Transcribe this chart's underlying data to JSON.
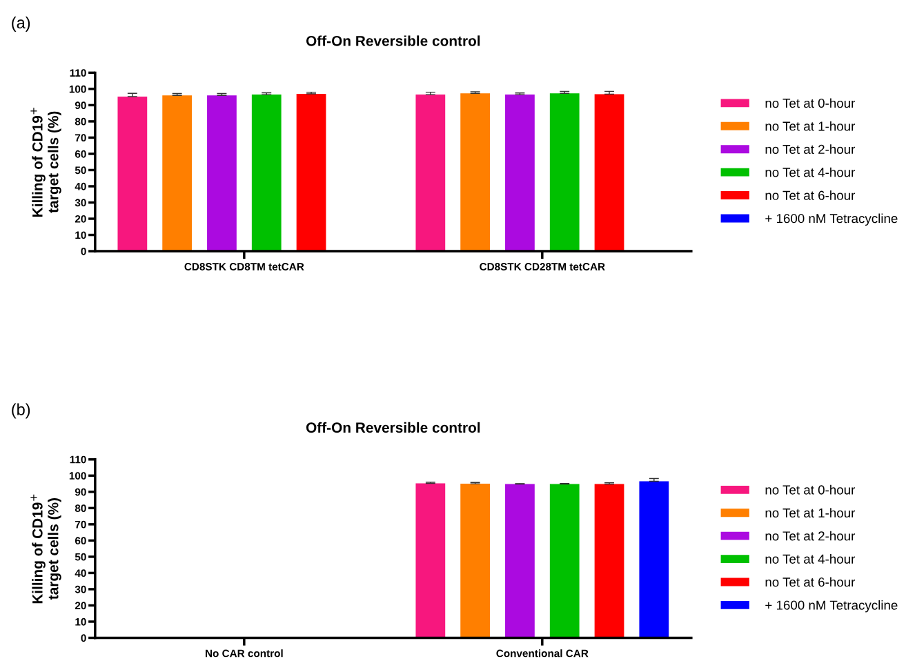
{
  "chart_data": [
    {
      "type": "bar",
      "title": "Off-On Reversible control",
      "ylabel": "Killing of CD19$^{+}$\ntarget cells (%)",
      "annotations": [
        "(a)"
      ],
      "categories": [
        "CD8STK CD8TM tetCAR",
        "CD8STK CD28TM tetCAR"
      ],
      "ylim": [
        0,
        110
      ],
      "yticks": [
        0,
        10,
        20,
        30,
        40,
        50,
        60,
        70,
        80,
        90,
        100,
        110
      ],
      "grid": false,
      "legend": "right",
      "series": [
        {
          "name": "no Tet at 0-hour",
          "color": "#f7177e",
          "values": [
            95.3,
            96.5
          ],
          "errors": [
            [
              95.3,
              97.3
            ],
            [
              96.5,
              98
            ]
          ]
        },
        {
          "name": "no Tet at 1-hour",
          "color": "#ff7f00",
          "values": [
            96,
            97.3
          ],
          "errors": [
            [
              96,
              97.2
            ],
            [
              97.3,
              98.3
            ]
          ]
        },
        {
          "name": "no Tet at 2-hour",
          "color": "#ab0ae0",
          "values": [
            96,
            96.5
          ],
          "errors": [
            [
              96,
              97.2
            ],
            [
              96.5,
              97.5
            ]
          ]
        },
        {
          "name": "no Tet at 4-hour",
          "color": "#00c000",
          "values": [
            96.5,
            97.3
          ],
          "errors": [
            [
              96.5,
              97.6
            ],
            [
              97.3,
              98.5
            ]
          ]
        },
        {
          "name": "no Tet at 6-hour",
          "color": "#ff0000",
          "values": [
            97,
            96.8
          ],
          "errors": [
            [
              97,
              98
            ],
            [
              96.8,
              98.5
            ]
          ]
        },
        {
          "name": "+ 1600 nM Tetracycline",
          "color": "#0000ff",
          "values": [
            null,
            null
          ],
          "errors": [
            null,
            null
          ]
        }
      ]
    },
    {
      "type": "bar",
      "title": "Off-On Reversible control",
      "ylabel": "Killing of CD19$^{+}$\ntarget cells (%)",
      "annotations": [
        "(b)"
      ],
      "categories": [
        "No CAR control",
        "Conventional CAR"
      ],
      "ylim": [
        0,
        110
      ],
      "yticks": [
        0,
        10,
        20,
        30,
        40,
        50,
        60,
        70,
        80,
        90,
        100,
        110
      ],
      "grid": false,
      "legend": "right",
      "series": [
        {
          "name": "no Tet at 0-hour",
          "color": "#f7177e",
          "values": [
            null,
            95.2
          ],
          "errors": [
            null,
            [
              95.2,
              95.9
            ]
          ]
        },
        {
          "name": "no Tet at 1-hour",
          "color": "#ff7f00",
          "values": [
            null,
            95
          ],
          "errors": [
            null,
            [
              95,
              95.8
            ]
          ]
        },
        {
          "name": "no Tet at 2-hour",
          "color": "#ab0ae0",
          "values": [
            null,
            94.8
          ],
          "errors": [
            null,
            [
              94.8,
              95.1
            ]
          ]
        },
        {
          "name": "no Tet at 4-hour",
          "color": "#00c000",
          "values": [
            null,
            94.8
          ],
          "errors": [
            null,
            [
              94.8,
              95.2
            ]
          ]
        },
        {
          "name": "no Tet at 6-hour",
          "color": "#ff0000",
          "values": [
            null,
            94.8
          ],
          "errors": [
            null,
            [
              94.8,
              95.6
            ]
          ]
        },
        {
          "name": "+ 1600 nM Tetracycline",
          "color": "#0000ff",
          "values": [
            null,
            96.5
          ],
          "errors": [
            null,
            [
              96.5,
              98.2
            ]
          ]
        }
      ]
    }
  ]
}
